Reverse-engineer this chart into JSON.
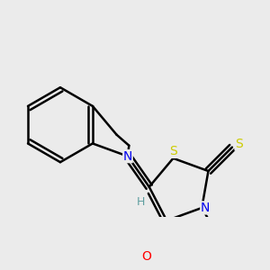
{
  "bg_color": "#ebebeb",
  "atom_colors": {
    "C": "#000000",
    "N": "#0000ee",
    "O": "#ff0000",
    "S": "#cccc00",
    "H": "#5f9ea0"
  },
  "bond_color": "#000000",
  "bond_width": 1.8,
  "font_size": 10
}
